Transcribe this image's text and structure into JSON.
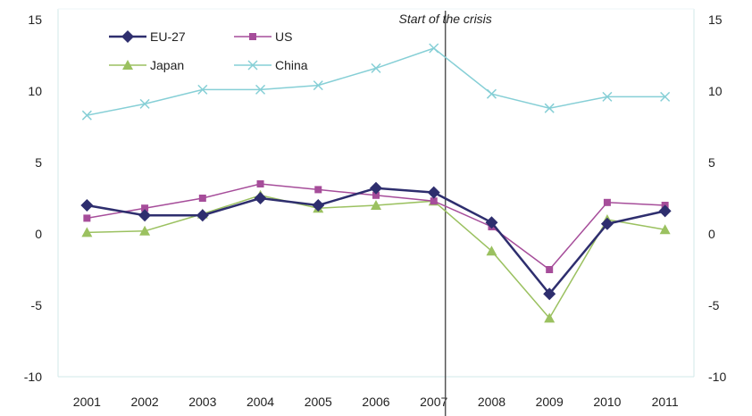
{
  "chart_data": {
    "type": "line",
    "x": [
      "2001",
      "2002",
      "2003",
      "2004",
      "2005",
      "2006",
      "2007",
      "2008",
      "2009",
      "2010",
      "2011"
    ],
    "ylim": [
      -10,
      15
    ],
    "yticks": [
      -10,
      -5,
      0,
      5,
      10,
      15
    ],
    "secondary_axis": true,
    "grid": false,
    "legend_position": "top-left",
    "series": [
      {
        "name": "EU-27",
        "color": "#2e2e6e",
        "marker": "diamond",
        "values": [
          2.0,
          1.3,
          1.3,
          2.5,
          2.0,
          3.2,
          2.9,
          0.8,
          -4.2,
          0.7,
          1.6
        ]
      },
      {
        "name": "US",
        "color": "#a64d9a",
        "marker": "square",
        "values": [
          1.1,
          1.8,
          2.5,
          3.5,
          3.1,
          2.7,
          2.3,
          0.5,
          -2.5,
          2.2,
          2.0
        ]
      },
      {
        "name": "Japan",
        "color": "#9bc160",
        "marker": "triangle",
        "values": [
          0.1,
          0.2,
          1.4,
          2.7,
          1.8,
          2.0,
          2.3,
          -1.2,
          -5.9,
          1.0,
          0.3
        ]
      },
      {
        "name": "China",
        "color": "#86cfd6",
        "marker": "x",
        "values": [
          8.3,
          9.1,
          10.1,
          10.1,
          10.4,
          11.6,
          13.0,
          9.8,
          8.8,
          9.6,
          9.6
        ]
      }
    ],
    "annotations": [
      {
        "text": "Start of the crisis",
        "x": "2007"
      }
    ]
  }
}
